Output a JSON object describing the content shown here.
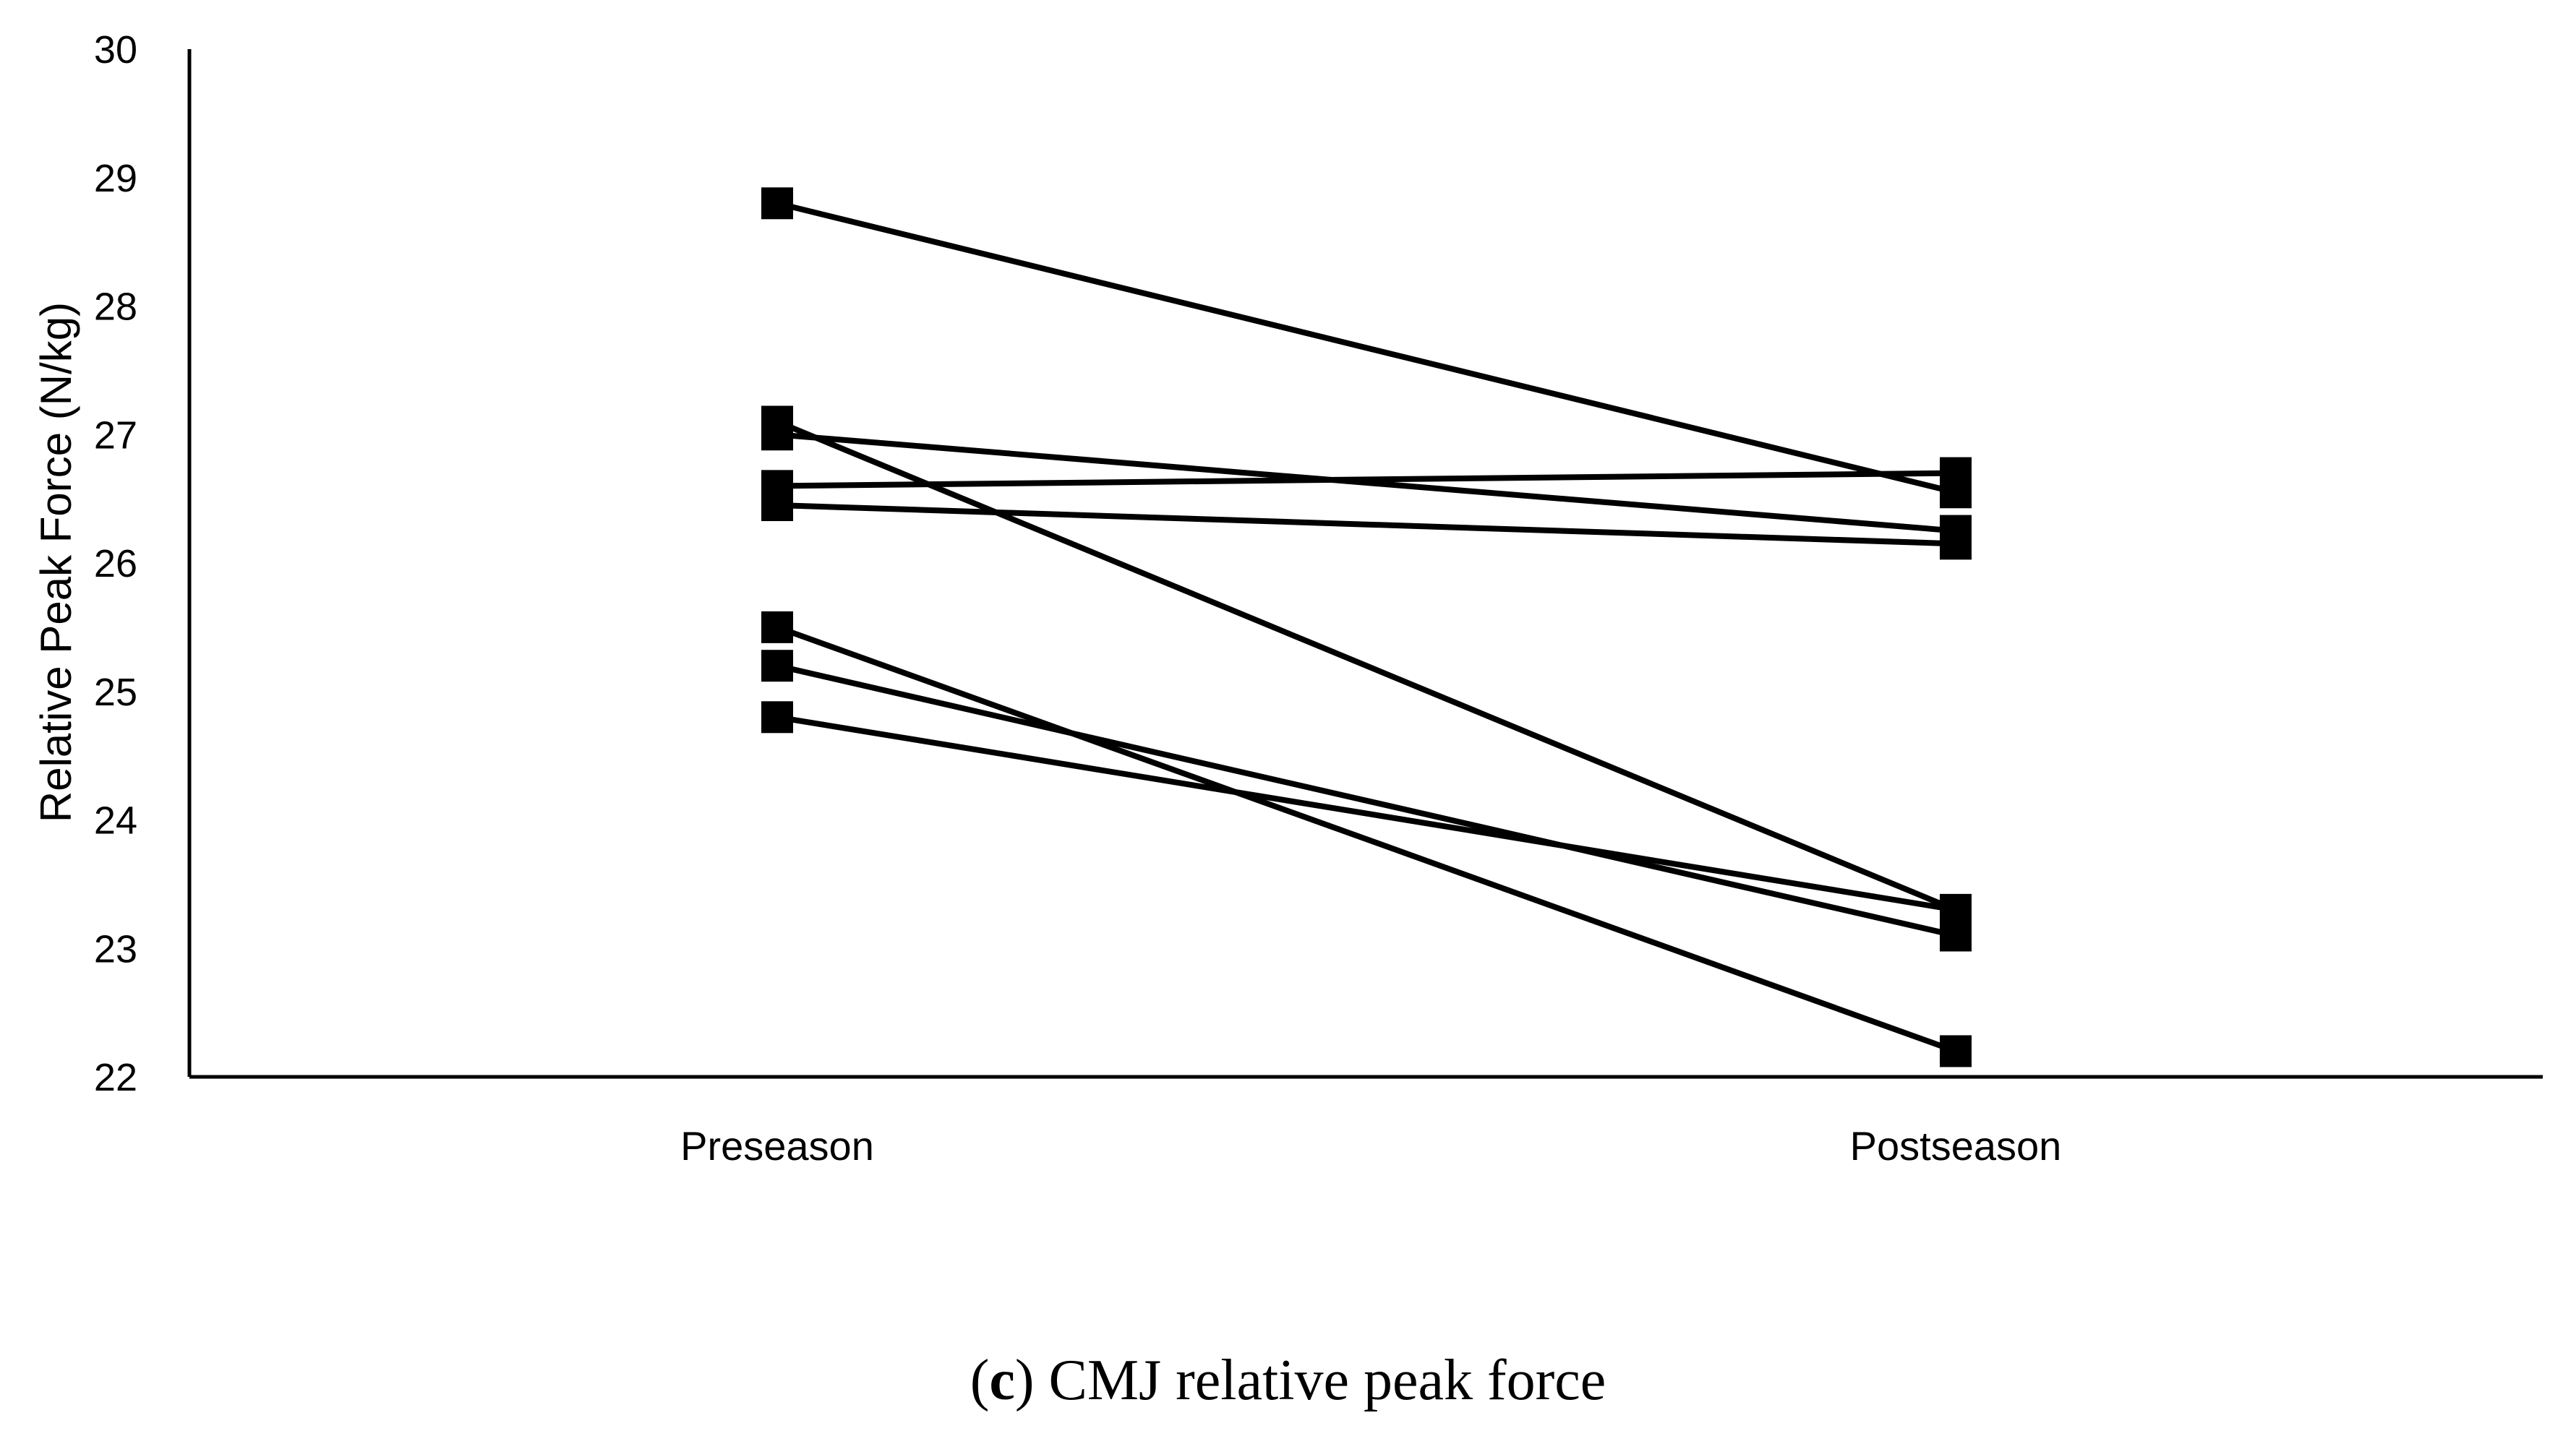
{
  "chart_data": {
    "type": "line",
    "categories": [
      "Preseason",
      "Postseason"
    ],
    "series": [
      {
        "values": [
          28.8,
          26.55
        ]
      },
      {
        "values": [
          27.0,
          26.25
        ]
      },
      {
        "values": [
          27.1,
          23.3
        ]
      },
      {
        "values": [
          26.6,
          26.7
        ]
      },
      {
        "values": [
          26.45,
          26.15
        ]
      },
      {
        "values": [
          25.5,
          22.2
        ]
      },
      {
        "values": [
          25.2,
          23.1
        ]
      },
      {
        "values": [
          24.8,
          23.3
        ]
      }
    ],
    "ylabel": "Relative Peak Force (N/kg)",
    "ylim": [
      22,
      30
    ],
    "yticks": [
      22,
      23,
      24,
      25,
      26,
      27,
      28,
      29,
      30
    ],
    "marker": "square",
    "line_color": "#000000",
    "grid": false,
    "legend": false
  },
  "caption": {
    "letter": "c",
    "text": "CMJ relative peak force"
  }
}
